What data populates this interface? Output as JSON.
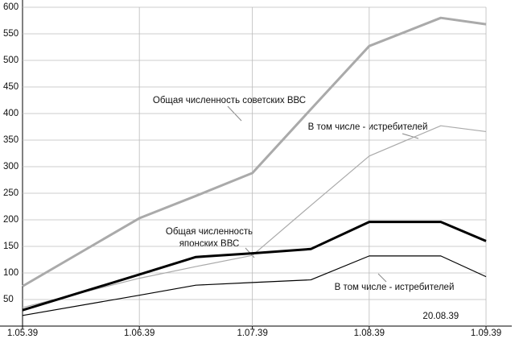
{
  "chart_data": {
    "type": "line",
    "categories": [
      "1.05.39",
      "1.06.39",
      null,
      "1.07.39",
      null,
      "1.08.39",
      "20.08.39",
      "1.09.39"
    ],
    "series": [
      {
        "color": "#aaaaaa",
        "line_width": 3,
        "values": [
          75,
          203,
          245,
          288,
          408,
          527,
          580,
          568
        ]
      },
      {
        "color": "#aaaaaa",
        "line_width": 1.2,
        "values": [
          35,
          90,
          112,
          133,
          227,
          320,
          377,
          366
        ]
      },
      {
        "color": "#000000",
        "line_width": 3,
        "values": [
          30,
          97,
          130,
          137,
          145,
          196,
          196,
          160
        ]
      },
      {
        "color": "#000000",
        "line_width": 1.2,
        "values": [
          20,
          58,
          77,
          82,
          87,
          132,
          132,
          93
        ]
      }
    ],
    "annotations": [
      "Общая численность советских ВВС",
      "В том числе - истребителей",
      [
        "Общая численность",
        "японских ВВС"
      ],
      "В том числе - истребителей"
    ],
    "ylim": [
      0,
      600
    ],
    "yticks": [
      50,
      100,
      150,
      200,
      250,
      300,
      350,
      400,
      450,
      500,
      550,
      600
    ],
    "grid": true
  }
}
